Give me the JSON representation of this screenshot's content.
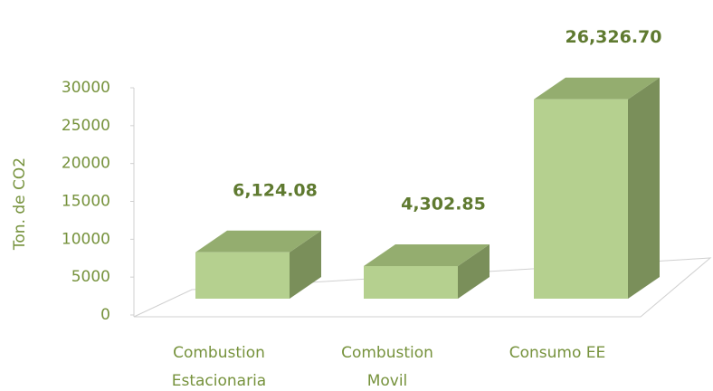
{
  "chart_data": {
    "type": "bar3d",
    "y_label": "Ton. de CO2",
    "categories": [
      "Combustion Estacionaria",
      "Combustion Movil",
      "Consumo EE"
    ],
    "values": [
      6124.08,
      4302.85,
      26326.7
    ],
    "value_labels": [
      "6,124.08",
      "4,302.85",
      "26,326.70"
    ],
    "color": "#b5d08f",
    "ylim": [
      0,
      30000
    ],
    "yticks": [
      0,
      5000,
      10000,
      15000,
      20000,
      25000,
      30000
    ]
  }
}
